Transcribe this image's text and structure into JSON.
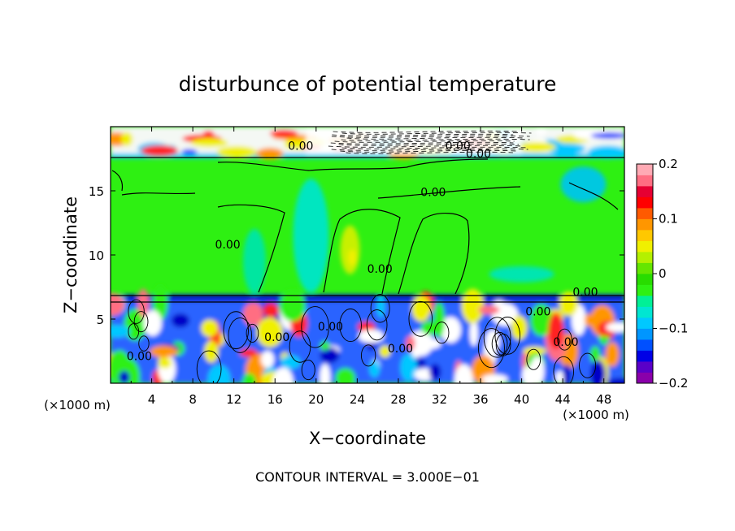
{
  "chart_data": {
    "type": "heatmap",
    "title": "disturbunce of potential temperature",
    "xlabel": "X−coordinate",
    "ylabel": "Z−coordinate",
    "x_unit": "(×1000 m)",
    "z_unit": "(×1000 m)",
    "x_range": [
      0,
      50
    ],
    "z_range": [
      0,
      20
    ],
    "x_ticks": [
      4,
      8,
      12,
      16,
      20,
      24,
      28,
      32,
      36,
      40,
      44,
      48
    ],
    "z_ticks": [
      5,
      10,
      15
    ],
    "contour_interval_text": "CONTOUR INTERVAL = 3.000E−01",
    "colorbar": {
      "min": -0.2,
      "max": 0.2,
      "ticks": [
        "0.2",
        "0.1",
        "0",
        "−0.1",
        "−0.2"
      ],
      "tick_values": [
        0.2,
        0.1,
        0,
        -0.1,
        -0.2
      ],
      "colors": [
        "#8a00aa",
        "#5a00c8",
        "#0000e6",
        "#0050ff",
        "#0096ff",
        "#00c8ff",
        "#00e6d2",
        "#00f096",
        "#2ef012",
        "#28dc00",
        "#64e600",
        "#b4f000",
        "#f0f000",
        "#ffc800",
        "#ff9600",
        "#ff5a00",
        "#ff0000",
        "#e60032",
        "#ff6e82",
        "#ffaab4"
      ]
    },
    "contour_labels": [
      {
        "text": "0.00",
        "x": 18.5,
        "z": 18.2
      },
      {
        "text": "0.00",
        "x": 33.8,
        "z": 18.2
      },
      {
        "text": "0.00",
        "x": 35.8,
        "z": 17.6
      },
      {
        "text": "0.00",
        "x": 31.4,
        "z": 14.6
      },
      {
        "text": "0.00",
        "x": 11.4,
        "z": 10.5
      },
      {
        "text": "0.00",
        "x": 26.2,
        "z": 8.6
      },
      {
        "text": "0.00",
        "x": 46.2,
        "z": 6.8
      },
      {
        "text": "0.00",
        "x": 41.6,
        "z": 5.3
      },
      {
        "text": "0.00",
        "x": 21.4,
        "z": 4.1
      },
      {
        "text": "0.00",
        "x": 16.2,
        "z": 3.3
      },
      {
        "text": "0.00",
        "x": 2.8,
        "z": 1.8
      },
      {
        "text": "0.00",
        "x": 28.2,
        "z": 2.4
      },
      {
        "text": "0.00",
        "x": 44.3,
        "z": 2.9
      }
    ]
  }
}
